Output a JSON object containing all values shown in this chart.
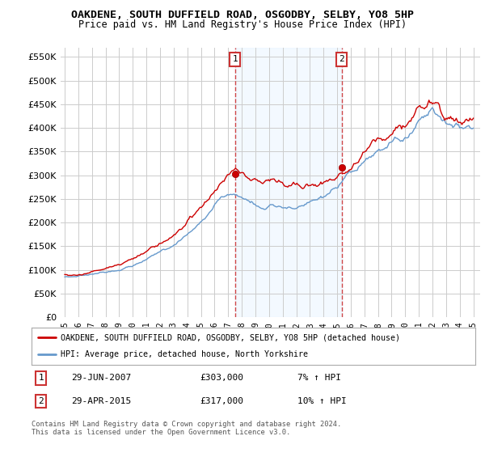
{
  "title": "OAKDENE, SOUTH DUFFIELD ROAD, OSGODBY, SELBY, YO8 5HP",
  "subtitle": "Price paid vs. HM Land Registry's House Price Index (HPI)",
  "sale1_x": 2007.5,
  "sale1_value": 303000,
  "sale1_label": "1",
  "sale1_date": "29-JUN-2007",
  "sale1_price": "£303,000",
  "sale1_hpi_text": "7% ↑ HPI",
  "sale2_x": 2015.33,
  "sale2_value": 317000,
  "sale2_label": "2",
  "sale2_date": "29-APR-2015",
  "sale2_price": "£317,000",
  "sale2_hpi_text": "10% ↑ HPI",
  "ylim": [
    0,
    570000
  ],
  "yticks": [
    0,
    50000,
    100000,
    150000,
    200000,
    250000,
    300000,
    350000,
    400000,
    450000,
    500000,
    550000
  ],
  "xlim_start": 1994.7,
  "xlim_end": 2025.5,
  "line_color_house": "#cc0000",
  "line_color_hpi": "#6699cc",
  "dashed_line_color": "#cc3333",
  "shade_color": "#ddeeff",
  "grid_color": "#cccccc",
  "background_color": "#ffffff",
  "legend_label_house": "OAKDENE, SOUTH DUFFIELD ROAD, OSGODBY, SELBY, YO8 5HP (detached house)",
  "legend_label_hpi": "HPI: Average price, detached house, North Yorkshire",
  "footer": "Contains HM Land Registry data © Crown copyright and database right 2024.\nThis data is licensed under the Open Government Licence v3.0."
}
